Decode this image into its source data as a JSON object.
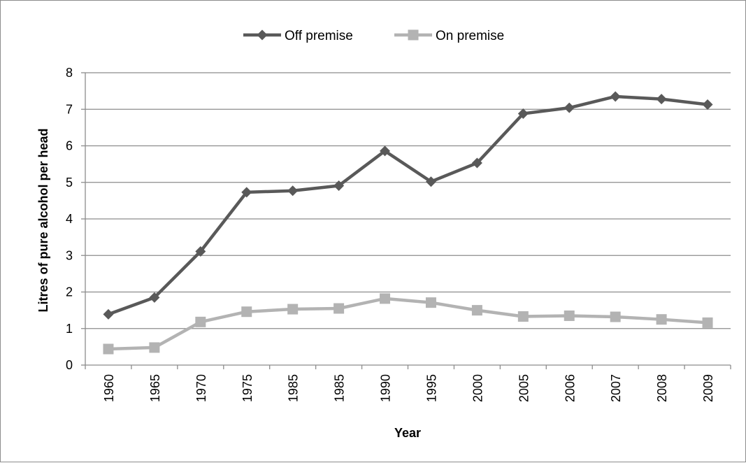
{
  "chart_data": {
    "type": "line",
    "categories": [
      "1960",
      "1965",
      "1970",
      "1975",
      "1985",
      "1985",
      "1990",
      "1995",
      "2000",
      "2005",
      "2006",
      "2007",
      "2008",
      "2009"
    ],
    "series": [
      {
        "name": "Off premise",
        "color": "#595959",
        "marker": "diamond",
        "values": [
          1.39,
          1.85,
          3.11,
          4.73,
          4.77,
          4.91,
          5.86,
          5.02,
          5.53,
          6.88,
          7.04,
          7.35,
          7.28,
          7.13
        ]
      },
      {
        "name": "On premise",
        "color": "#b3b3b3",
        "marker": "square",
        "values": [
          0.44,
          0.48,
          1.18,
          1.46,
          1.53,
          1.55,
          1.82,
          1.71,
          1.5,
          1.33,
          1.35,
          1.32,
          1.25,
          1.16
        ]
      }
    ],
    "xlabel": "Year",
    "ylabel": "Litres of pure alcohol per head",
    "ylim": [
      0,
      8
    ],
    "yticks": [
      "0",
      "1",
      "2",
      "3",
      "4",
      "5",
      "6",
      "7",
      "8"
    ],
    "grid": true,
    "legend_position": "top"
  }
}
